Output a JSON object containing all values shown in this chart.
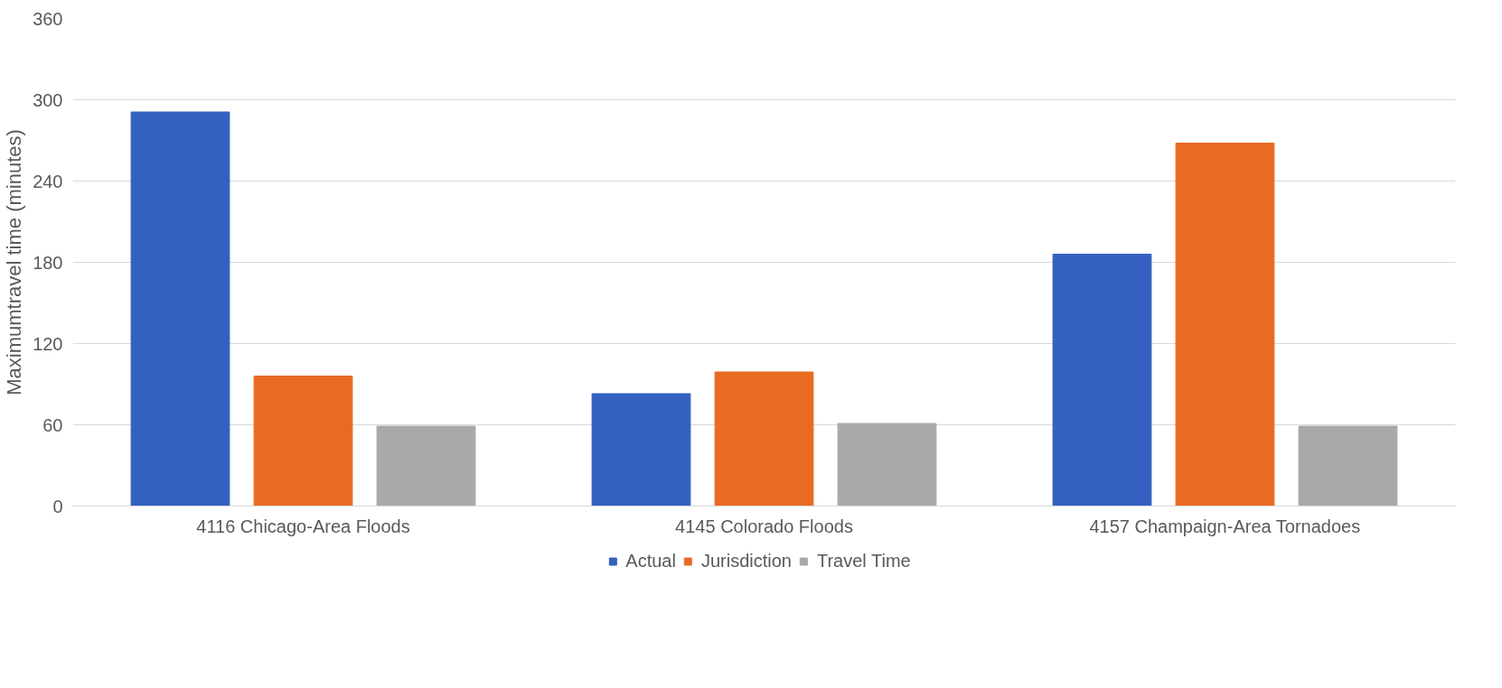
{
  "chart_data": {
    "type": "bar",
    "ylabel": "Maximumtravel time (minutes)",
    "categories": [
      "4116 Chicago-Area Floods",
      "4145 Colorado Floods",
      "4157 Champaign-Area Tornadoes"
    ],
    "series": [
      {
        "name": "Actual",
        "color": "#3461bf",
        "values": [
          291,
          83,
          186
        ]
      },
      {
        "name": "Jurisdiction",
        "color": "#e96b23",
        "values": [
          96,
          99,
          268
        ]
      },
      {
        "name": "Travel Time",
        "color": "#a9a9a9",
        "values": [
          59,
          61,
          59
        ]
      }
    ],
    "ylim": [
      0,
      360
    ],
    "yticks": [
      0,
      60,
      120,
      180,
      240,
      300,
      360
    ],
    "grid": "y",
    "legend": "bottom"
  }
}
